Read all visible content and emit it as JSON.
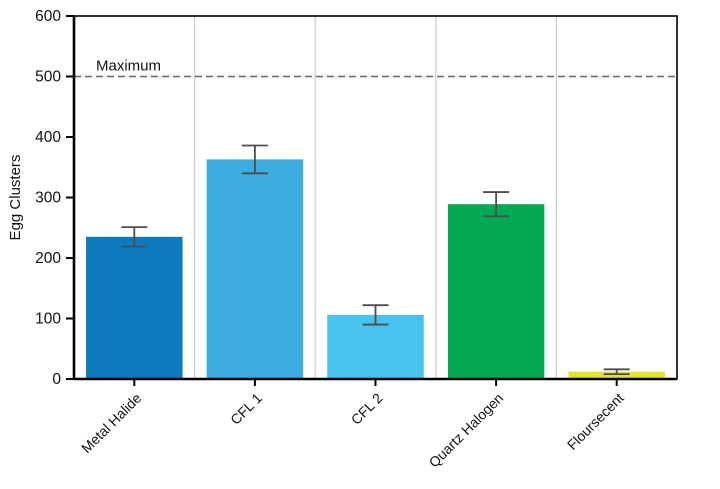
{
  "chart_data": {
    "type": "bar",
    "title": "",
    "ylabel": "Egg Clusters",
    "xlabel": "",
    "categories": [
      "Metal Halide",
      "CFL 1",
      "CFL 2",
      "Quartz Halogen",
      "Floursecent"
    ],
    "values": [
      235,
      363,
      106,
      289,
      12
    ],
    "errors": [
      16,
      23,
      16,
      20,
      4
    ],
    "bar_colors": [
      "#0d7abf",
      "#3aace2",
      "#48c3ed",
      "#04a953",
      "#e5e22c"
    ],
    "ylim": [
      0,
      600
    ],
    "ytick_step": 100,
    "yticks": [
      0,
      100,
      200,
      300,
      400,
      500,
      600
    ],
    "reference_line": {
      "value": 500,
      "label": "Maximum",
      "style": "dashed",
      "color": "#666666"
    },
    "legend_position": "none",
    "grid": "vertical-category-separators",
    "colors": {
      "axis": "#000000",
      "gridline": "#cccccc",
      "error_bar": "#4d4d4d",
      "text": "#111111",
      "background": "#ffffff"
    }
  }
}
